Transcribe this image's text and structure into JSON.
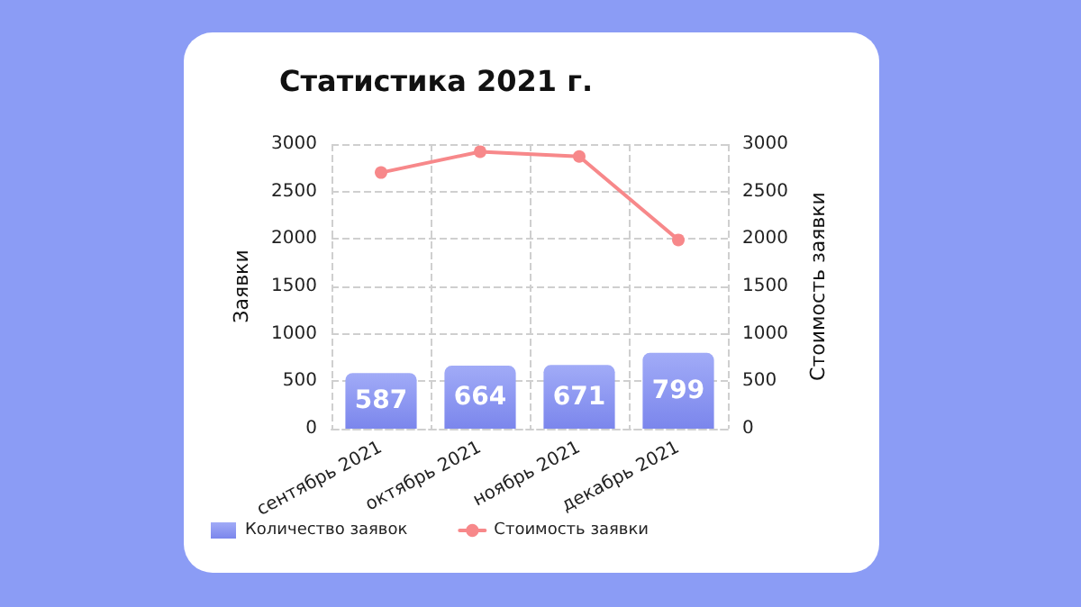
{
  "chart_data": {
    "type": "bar",
    "title": "Статистика 2021 г.",
    "ylabel": "Заявки",
    "y2label": "Стоимость заявки",
    "categories": [
      "сентябрь 2021",
      "октябрь 2021",
      "ноябрь 2021",
      "декабрь 2021"
    ],
    "series": [
      {
        "name": "Количество заявок",
        "color": "#7b86ec",
        "values": [
          587,
          664,
          671,
          799
        ],
        "data_labels": true
      },
      {
        "name": "Стоимость заявки",
        "type": "line",
        "axis": "y2",
        "color": "#f7888a",
        "marker": "circle",
        "values": [
          2700,
          2920,
          2870,
          1990
        ]
      }
    ],
    "ylim": [
      0,
      3000
    ],
    "yticks": [
      0,
      500,
      1000,
      1500,
      2000,
      2500,
      3000
    ],
    "y2lim": [
      0,
      3000
    ],
    "y2ticks": [
      0,
      500,
      1000,
      1500,
      2000,
      2500,
      3000
    ],
    "grid": true,
    "legend": "bottom left"
  }
}
